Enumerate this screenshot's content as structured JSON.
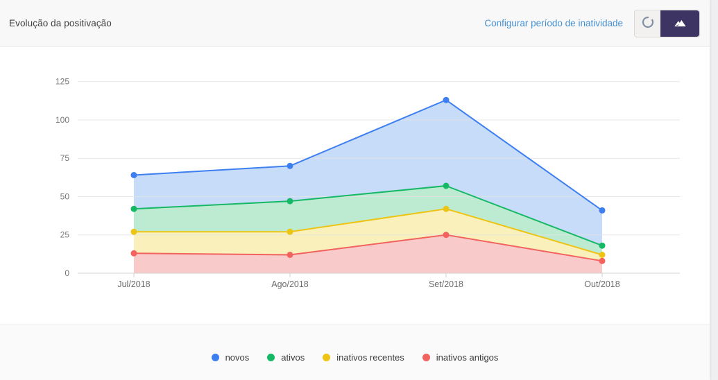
{
  "header": {
    "title": "Evolução da positivação",
    "config_link": "Configurar período de inatividade",
    "buttons": {
      "refresh": "refresh",
      "area_chart": "area-chart-view"
    }
  },
  "chart_data": {
    "type": "area",
    "title": "Evolução da positivação",
    "categories": [
      "Jul/2018",
      "Ago/2018",
      "Set/2018",
      "Out/2018"
    ],
    "series": [
      {
        "name": "novos",
        "color": "#3d7ff0",
        "fill": "#c7dcf8",
        "values": [
          64,
          70,
          113,
          41
        ]
      },
      {
        "name": "ativos",
        "color": "#15b865",
        "fill": "#bdebd2",
        "values": [
          42,
          47,
          57,
          18
        ]
      },
      {
        "name": "inativos recentes",
        "color": "#edc414",
        "fill": "#faf0bb",
        "values": [
          27,
          27,
          42,
          12
        ]
      },
      {
        "name": "inativos antigos",
        "color": "#f2625e",
        "fill": "#f9caca",
        "values": [
          13,
          12,
          25,
          8
        ]
      }
    ],
    "ylim": [
      0,
      125
    ],
    "yticks": [
      0,
      25,
      50,
      75,
      100,
      125
    ],
    "grid": true,
    "legend_position": "bottom"
  },
  "colors": {
    "link": "#4690d2",
    "dark_button": "#3d3464",
    "grid_line": "#e3e3e3",
    "axis_line": "#d2d2d2",
    "tick_label": "#777777"
  }
}
